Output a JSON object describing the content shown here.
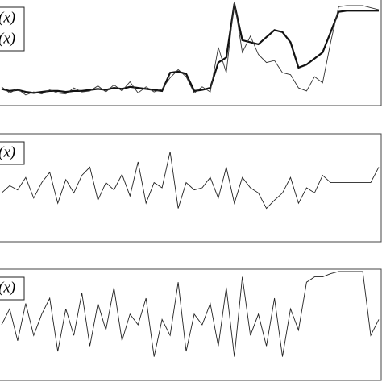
{
  "chart_data": [
    {
      "type": "line",
      "legend": "top-left",
      "xlim": [
        0,
        470
      ],
      "ylim": [
        0,
        100
      ],
      "x": [
        0,
        10,
        20,
        30,
        40,
        50,
        60,
        70,
        80,
        90,
        100,
        110,
        120,
        130,
        140,
        150,
        160,
        170,
        180,
        190,
        200,
        210,
        220,
        230,
        240,
        250,
        260,
        270,
        280,
        290,
        300,
        310,
        320,
        330,
        340,
        350,
        360,
        370,
        380,
        390,
        400,
        410,
        420,
        430,
        440,
        450,
        460,
        470
      ],
      "series": [
        {
          "name": "(x)",
          "color": "#111111",
          "width": 2.2,
          "values": [
            14,
            12,
            13,
            11,
            10,
            11,
            12,
            12,
            11,
            12,
            12,
            13,
            14,
            13,
            15,
            14,
            16,
            15,
            14,
            13,
            12,
            30,
            31,
            29,
            12,
            13,
            15,
            40,
            45,
            98,
            62,
            60,
            58,
            65,
            72,
            70,
            60,
            35,
            38,
            44,
            50,
            70,
            90,
            91,
            91,
            91,
            91,
            91
          ]
        },
        {
          "name": "(x)",
          "color": "#333333",
          "width": 0.9,
          "values": [
            16,
            10,
            14,
            8,
            11,
            9,
            13,
            10,
            9,
            15,
            11,
            12,
            17,
            11,
            18,
            12,
            21,
            10,
            16,
            11,
            14,
            25,
            33,
            26,
            10,
            16,
            11,
            55,
            30,
            100,
            50,
            66,
            48,
            40,
            42,
            30,
            28,
            15,
            12,
            26,
            20,
            60,
            95,
            96,
            96,
            96,
            94,
            92
          ]
        }
      ]
    },
    {
      "type": "line",
      "legend": "top-left",
      "xlim": [
        0,
        470
      ],
      "ylim": [
        0,
        100
      ],
      "x": [
        0,
        10,
        20,
        30,
        40,
        50,
        60,
        70,
        80,
        90,
        100,
        110,
        120,
        130,
        140,
        150,
        160,
        170,
        180,
        190,
        200,
        210,
        220,
        230,
        240,
        250,
        260,
        270,
        280,
        290,
        300,
        310,
        320,
        330,
        340,
        350,
        360,
        370,
        380,
        390,
        400,
        410,
        420,
        430,
        440,
        450,
        460,
        470
      ],
      "series": [
        {
          "name": "(x)",
          "color": "#222222",
          "width": 0.9,
          "values": [
            45,
            52,
            48,
            60,
            40,
            55,
            65,
            35,
            58,
            45,
            62,
            70,
            38,
            55,
            48,
            63,
            42,
            75,
            35,
            55,
            50,
            85,
            30,
            55,
            48,
            50,
            60,
            40,
            70,
            35,
            60,
            50,
            45,
            30,
            38,
            45,
            60,
            35,
            50,
            45,
            62,
            55,
            55,
            55,
            55,
            55,
            55,
            70
          ]
        }
      ]
    },
    {
      "type": "line",
      "legend": "top-left",
      "xlim": [
        0,
        470
      ],
      "ylim": [
        0,
        100
      ],
      "x": [
        0,
        10,
        20,
        30,
        40,
        50,
        60,
        70,
        80,
        90,
        100,
        110,
        120,
        130,
        140,
        150,
        160,
        170,
        180,
        190,
        200,
        210,
        220,
        230,
        240,
        250,
        260,
        270,
        280,
        290,
        300,
        310,
        320,
        330,
        340,
        350,
        360,
        370,
        380,
        390,
        400,
        410,
        420,
        430,
        440,
        450,
        460,
        470
      ],
      "series": [
        {
          "name": "(x)",
          "color": "#222222",
          "width": 0.9,
          "values": [
            50,
            65,
            35,
            70,
            40,
            60,
            75,
            25,
            65,
            40,
            80,
            30,
            70,
            45,
            85,
            35,
            60,
            50,
            75,
            20,
            55,
            40,
            90,
            25,
            60,
            50,
            70,
            30,
            85,
            20,
            95,
            40,
            60,
            30,
            75,
            20,
            65,
            45,
            90,
            95,
            95,
            98,
            100,
            100,
            100,
            100,
            40,
            55
          ]
        }
      ]
    }
  ]
}
